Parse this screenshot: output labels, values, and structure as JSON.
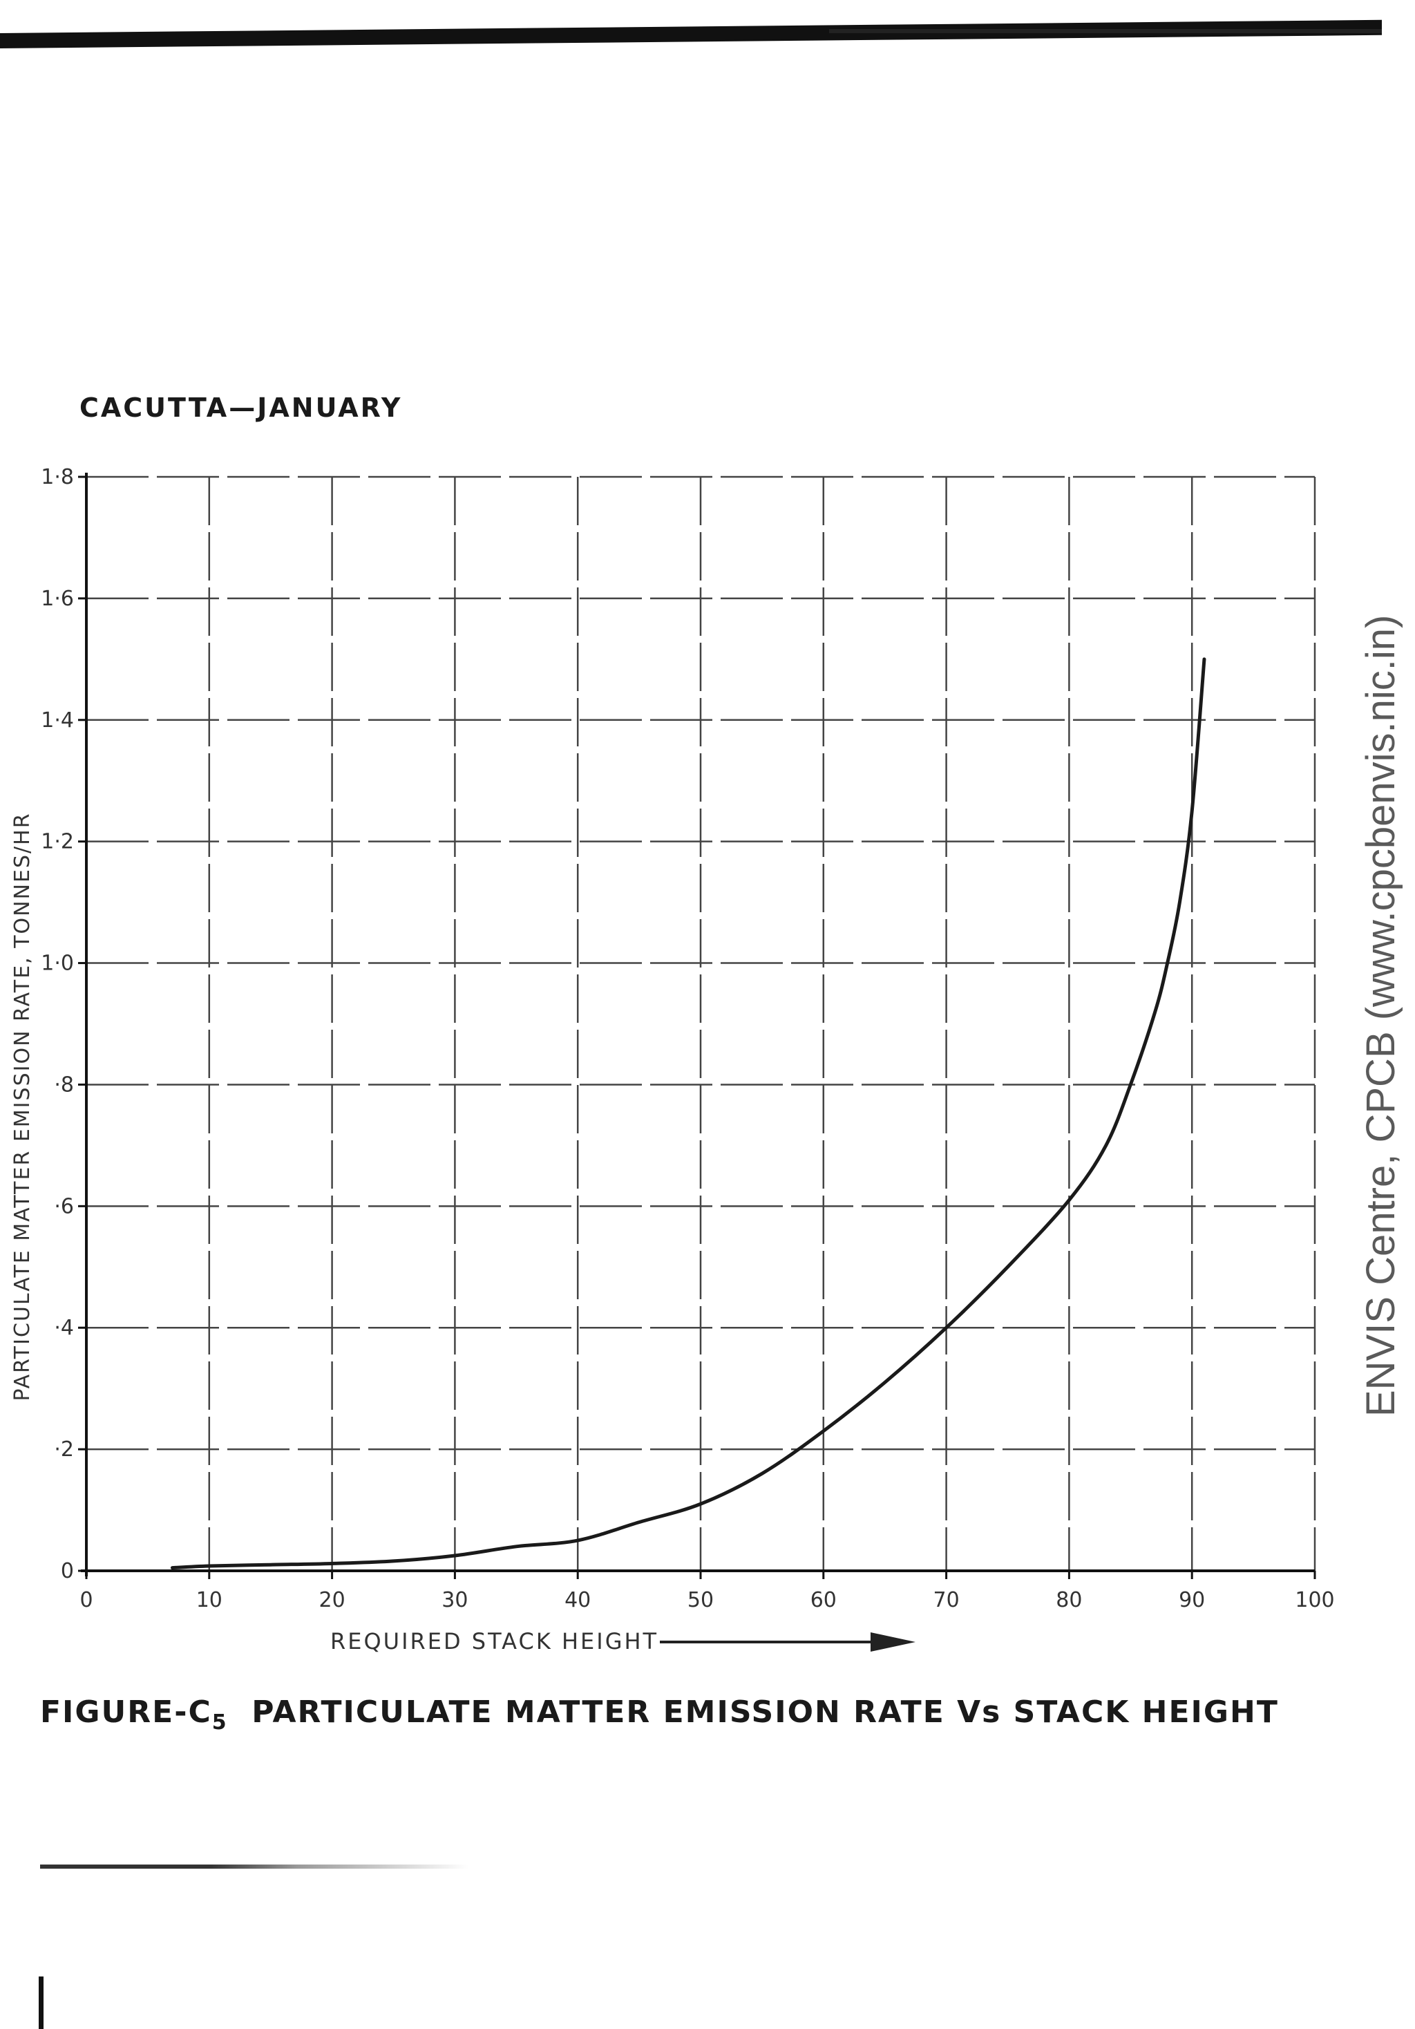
{
  "page": {
    "chart_title": "CACUTTA—JANUARY",
    "figure_label": "FIGURE-C",
    "figure_sub": "5",
    "figure_text": "PARTICULATE MATTER EMISSION RATE Vs STACK HEIGHT",
    "watermark": "ENVIS Centre, CPCB (www.cpcbenvis.nic.in)"
  },
  "chart_data": {
    "type": "line",
    "title": "CACUTTA—JANUARY",
    "xlabel": "REQUIRED STACK HEIGHT",
    "ylabel": "PARTICULATE MATTER EMISSION RATE, TONNES/HR",
    "xlim": [
      0,
      100
    ],
    "ylim": [
      0,
      1.8
    ],
    "x_ticks": [
      0,
      10,
      20,
      30,
      40,
      50,
      60,
      70,
      80,
      90,
      100
    ],
    "x_tick_labels": [
      "0",
      "10",
      "20",
      "30",
      "40",
      "50",
      "60",
      "70",
      "80",
      "90",
      "100"
    ],
    "y_ticks": [
      0,
      0.2,
      0.4,
      0.6,
      0.8,
      1.0,
      1.2,
      1.4,
      1.6,
      1.8
    ],
    "y_tick_labels": [
      "0",
      "·2",
      "·4",
      "·6",
      "·8",
      "1·0",
      "1·2",
      "1·4",
      "1·6",
      "1·8"
    ],
    "grid": true,
    "grid_style": "dashed",
    "line_color": "#1a1a1a",
    "series": [
      {
        "x": [
          7,
          10,
          15,
          20,
          25,
          30,
          35,
          40,
          45,
          50,
          55,
          60,
          65,
          70,
          75,
          80,
          83,
          85,
          87,
          88,
          89,
          90,
          91
        ],
        "y": [
          0.005,
          0.008,
          0.01,
          0.012,
          0.016,
          0.025,
          0.04,
          0.05,
          0.08,
          0.11,
          0.16,
          0.23,
          0.31,
          0.4,
          0.5,
          0.61,
          0.7,
          0.8,
          0.92,
          1.0,
          1.1,
          1.25,
          1.5
        ]
      }
    ]
  }
}
